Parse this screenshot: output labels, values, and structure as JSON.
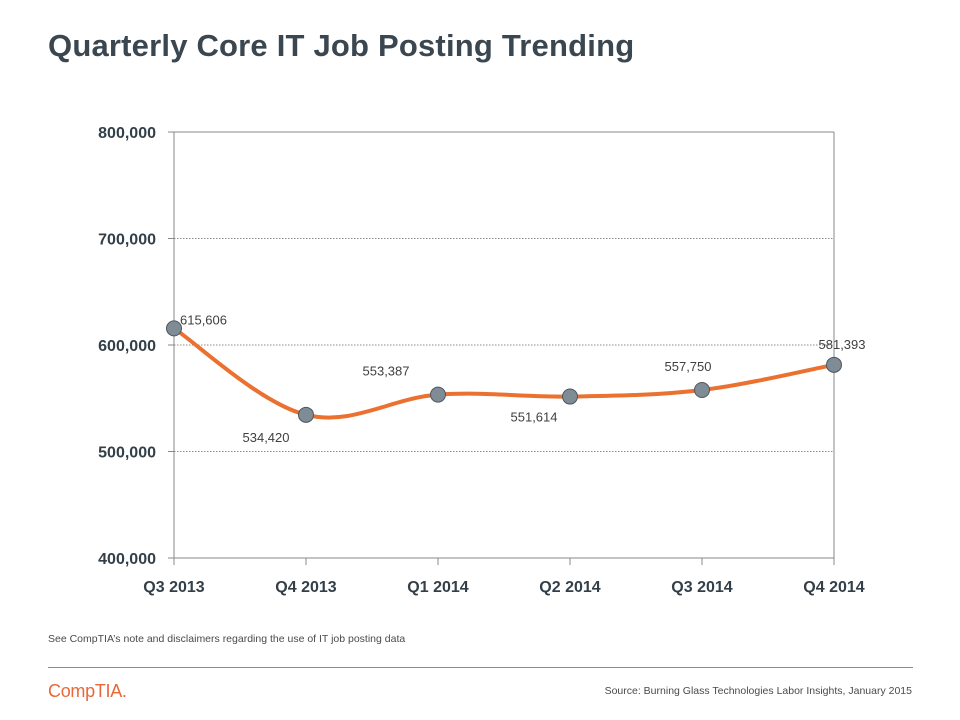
{
  "page": {
    "title": "Quarterly Core IT Job Posting Trending",
    "note": "See CompTIA’s note and disclaimers regarding the use of IT job posting data",
    "logo": "CompTIA.",
    "source": "Source: Burning Glass Technologies Labor Insights, January 2015"
  },
  "colors": {
    "line": "#ea7130",
    "marker_fill": "#7f8c96",
    "marker_stroke": "#4b5660",
    "axis": "#888888",
    "grid": "#666666",
    "text": "#333f48"
  },
  "chart_data": {
    "type": "line",
    "title": "",
    "xlabel": "",
    "ylabel": "",
    "categories": [
      "Q3 2013",
      "Q4 2013",
      "Q1 2014",
      "Q2 2014",
      "Q3 2014",
      "Q4 2014"
    ],
    "series": [
      {
        "values": [
          615606,
          534420,
          553387,
          551614,
          557750,
          581393
        ]
      }
    ],
    "data_labels": [
      "615,606",
      "534,420",
      "553,387",
      "551,614",
      "557,750",
      "581,393"
    ],
    "ylim": [
      400000,
      800000
    ],
    "yticks": [
      400000,
      500000,
      600000,
      700000,
      800000
    ],
    "ytick_labels": [
      "400,000",
      "500,000",
      "600,000",
      "700,000",
      "800,000"
    ],
    "grid": true,
    "grid_style": "dotted horizontal",
    "line_style": "smoothed",
    "legend": "none"
  }
}
